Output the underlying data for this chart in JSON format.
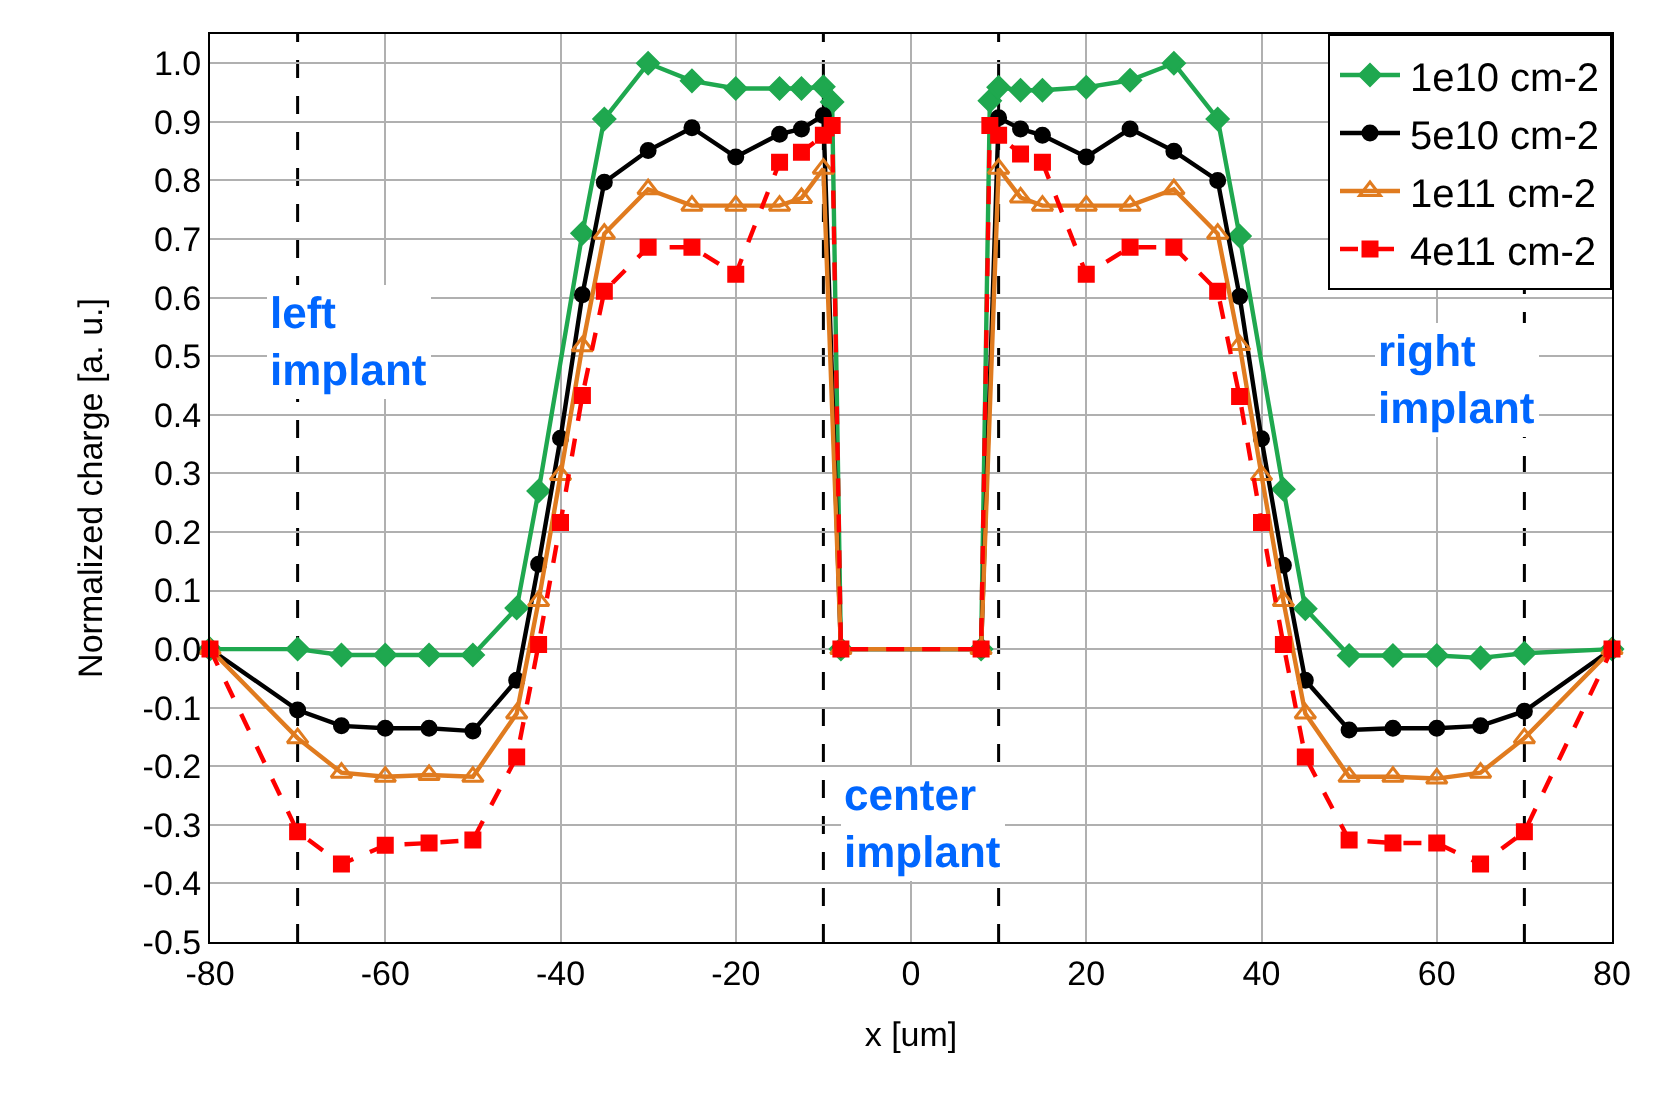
{
  "chart_data": {
    "type": "line",
    "xlabel": "x [um]",
    "ylabel": "Normalized charge [a. u.]",
    "xlim": [
      -80,
      80
    ],
    "xticks": [
      -80,
      -60,
      -40,
      -20,
      0,
      20,
      40,
      60,
      80
    ],
    "ylim": [
      -0.5,
      1.05
    ],
    "yticks": [
      -0.5,
      -0.4,
      -0.3,
      -0.2,
      -0.1,
      {
        "value": 0,
        "label": "0.0"
      },
      0.1,
      0.2,
      0.3,
      0.4,
      0.5,
      0.6,
      0.7,
      0.8,
      0.9,
      {
        "value": 1,
        "label": "1.0"
      }
    ],
    "grid": true,
    "legend": "top right",
    "series": [
      {
        "name": "1e10 cm-2",
        "color": "#1fa84f",
        "marker": "diamond",
        "line_style": "solid",
        "x": [
          -80,
          -70,
          -65,
          -60,
          -55,
          -50,
          -45,
          -42.5,
          -37.5,
          -35,
          -30,
          -25,
          -20,
          -15,
          -12.5,
          -10,
          -9,
          -8,
          8,
          9,
          10,
          12.5,
          15,
          20,
          25,
          30,
          35,
          37.5,
          42.5,
          45,
          50,
          55,
          60,
          65,
          70,
          80
        ],
        "values": [
          0,
          0,
          -0.01,
          -0.01,
          -0.01,
          -0.01,
          0.07,
          0.27,
          0.71,
          0.905,
          1.0,
          0.97,
          0.957,
          0.957,
          0.957,
          0.96,
          0.934,
          0,
          0,
          0.936,
          0.959,
          0.954,
          0.954,
          0.959,
          0.971,
          1.0,
          0.905,
          0.705,
          0.273,
          0.069,
          -0.011,
          -0.011,
          -0.011,
          -0.015,
          -0.007,
          0
        ]
      },
      {
        "name": "5e10 cm-2",
        "color": "#000000",
        "marker": "circle",
        "line_style": "solid",
        "x": [
          -80,
          -70,
          -65,
          -60,
          -55,
          -50,
          -45,
          -42.5,
          -40,
          -37.5,
          -35,
          -30,
          -25,
          -20,
          -15,
          -12.5,
          -10,
          -8,
          8,
          10,
          12.5,
          15,
          20,
          25,
          30,
          35,
          37.5,
          40,
          42.5,
          45,
          50,
          55,
          60,
          65,
          70,
          80
        ],
        "values": [
          0,
          -0.104,
          -0.131,
          -0.135,
          -0.135,
          -0.14,
          -0.053,
          0.145,
          0.36,
          0.605,
          0.797,
          0.851,
          0.89,
          0.84,
          0.879,
          0.888,
          0.911,
          0,
          0,
          0.907,
          0.888,
          0.877,
          0.84,
          0.888,
          0.85,
          0.8,
          0.602,
          0.359,
          0.143,
          -0.053,
          -0.138,
          -0.135,
          -0.135,
          -0.131,
          -0.106,
          0
        ]
      },
      {
        "name": "1e11 cm-2",
        "color": "#e07b1f",
        "marker": "triangle",
        "line_style": "solid",
        "x": [
          -80,
          -70,
          -65,
          -60,
          -55,
          -50,
          -45,
          -42.5,
          -40,
          -37.5,
          -35,
          -30,
          -25,
          -20,
          -15,
          -12.5,
          -10,
          -8,
          8,
          10,
          12.5,
          15,
          20,
          25,
          30,
          35,
          37.5,
          40,
          42.5,
          45,
          50,
          55,
          60,
          65,
          70,
          80
        ],
        "values": [
          0,
          -0.152,
          -0.211,
          -0.218,
          -0.215,
          -0.218,
          -0.11,
          0.082,
          0.297,
          0.517,
          0.709,
          0.785,
          0.757,
          0.757,
          0.757,
          0.77,
          0.82,
          0,
          0,
          0.82,
          0.771,
          0.757,
          0.757,
          0.757,
          0.785,
          0.709,
          0.519,
          0.297,
          0.082,
          -0.11,
          -0.218,
          -0.218,
          -0.221,
          -0.211,
          -0.152,
          0
        ]
      },
      {
        "name": "4e11 cm-2",
        "color": "#ff0000",
        "marker": "square",
        "line_style": "dashed",
        "x": [
          -80,
          -70,
          -65,
          -60,
          -55,
          -50,
          -45,
          -42.5,
          -40,
          -37.5,
          -35,
          -30,
          -25,
          -20,
          -15,
          -12.5,
          -10,
          -9,
          -8,
          8,
          9,
          10,
          12.5,
          15,
          20,
          25,
          30,
          35,
          37.5,
          40,
          42.5,
          45,
          50,
          55,
          60,
          65,
          70,
          80
        ],
        "values": [
          0,
          -0.312,
          -0.367,
          -0.335,
          -0.331,
          -0.326,
          -0.184,
          0.008,
          0.216,
          0.433,
          0.611,
          0.686,
          0.686,
          0.64,
          0.831,
          0.848,
          0.877,
          0.894,
          0,
          0,
          0.894,
          0.877,
          0.845,
          0.831,
          0.64,
          0.686,
          0.686,
          0.611,
          0.431,
          0.216,
          0.008,
          -0.184,
          -0.326,
          -0.331,
          -0.331,
          -0.367,
          -0.312,
          0
        ]
      }
    ],
    "ref_lines": [
      {
        "axis": "x",
        "value": -70,
        "color": "#000000",
        "line_style": "dashed"
      },
      {
        "axis": "x",
        "value": -10,
        "color": "#000000",
        "line_style": "dashed"
      },
      {
        "axis": "x",
        "value": 10,
        "color": "#000000",
        "line_style": "dashed"
      },
      {
        "axis": "x",
        "value": 70,
        "color": "#000000",
        "line_style": "dashed"
      }
    ],
    "annotations": [
      "left\nimplant",
      "center\nimplant",
      "right\nimplant"
    ]
  }
}
